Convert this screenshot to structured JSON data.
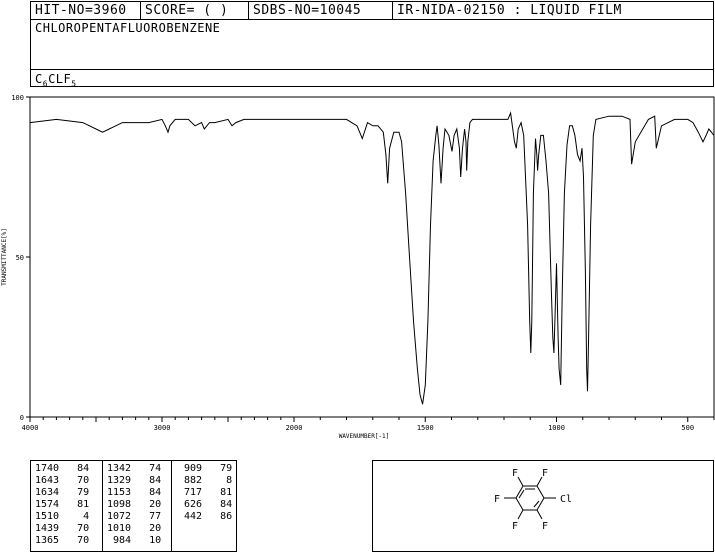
{
  "header": {
    "hit_no": "HIT-NO=3960",
    "score": "SCORE=  (   )",
    "sdbs_no": "SDBS-NO=10045",
    "ir": "IR-NIDA-02150 : LIQUID FILM"
  },
  "compound": {
    "name": "CHLOROPENTAFLUOROBENZENE",
    "formula_c": "C",
    "formula_c_sub": "6",
    "formula_mid": "CLF",
    "formula_f_sub": "5"
  },
  "chart_data": {
    "type": "line",
    "title": "",
    "xlabel": "WAVENUMBER[-1]",
    "ylabel": "TRANSMITTANCE[%]",
    "xlim": [
      4000,
      400
    ],
    "ylim": [
      0,
      100
    ],
    "x_ticks": [
      4000,
      3000,
      2000,
      1500,
      1000,
      500
    ],
    "y_ticks": [
      0,
      50,
      100
    ],
    "series": [
      {
        "name": "",
        "x": [
          4000,
          3800,
          3600,
          3500,
          3450,
          3400,
          3300,
          3100,
          3000,
          2975,
          2955,
          2940,
          2900,
          2800,
          2750,
          2700,
          2680,
          2640,
          2600,
          2500,
          2470,
          2440,
          2380,
          2300,
          2200,
          2100,
          2000,
          1900,
          1800,
          1760,
          1740,
          1720,
          1700,
          1680,
          1660,
          1650,
          1643,
          1636,
          1620,
          1600,
          1590,
          1575,
          1560,
          1545,
          1530,
          1520,
          1510,
          1500,
          1490,
          1480,
          1470,
          1460,
          1455,
          1448,
          1440,
          1432,
          1425,
          1410,
          1398,
          1390,
          1380,
          1370,
          1365,
          1358,
          1350,
          1345,
          1342,
          1338,
          1330,
          1320,
          1300,
          1250,
          1200,
          1185,
          1175,
          1160,
          1153,
          1146,
          1135,
          1125,
          1110,
          1102,
          1098,
          1094,
          1088,
          1080,
          1075,
          1072,
          1068,
          1060,
          1050,
          1040,
          1030,
          1020,
          1014,
          1010,
          1006,
          1000,
          994,
          990,
          984,
          978,
          970,
          960,
          950,
          940,
          930,
          920,
          910,
          903,
          897,
          890,
          885,
          882,
          879,
          870,
          860,
          850,
          800,
          750,
          720,
          717,
          714,
          700,
          650,
          626,
          620,
          600,
          550,
          500,
          480,
          460,
          442,
          430,
          420,
          410,
          400
        ],
        "y": [
          92,
          93,
          92,
          90,
          89,
          90,
          92,
          92,
          93,
          91,
          89,
          91,
          93,
          93,
          91,
          92,
          90,
          92,
          92,
          93,
          91,
          92,
          93,
          93,
          93,
          93,
          93,
          93,
          93,
          91,
          87,
          92,
          91,
          91,
          89,
          82,
          73,
          84,
          89,
          89,
          86,
          70,
          50,
          30,
          15,
          7,
          4,
          10,
          30,
          60,
          80,
          88,
          91,
          85,
          73,
          84,
          90,
          88,
          83,
          88,
          90,
          84,
          75,
          84,
          90,
          86,
          77,
          86,
          92,
          93,
          93,
          93,
          93,
          93,
          95,
          86,
          84,
          90,
          92,
          88,
          60,
          30,
          20,
          30,
          70,
          87,
          82,
          77,
          82,
          88,
          88,
          80,
          70,
          40,
          25,
          20,
          30,
          48,
          25,
          15,
          10,
          40,
          70,
          85,
          91,
          91,
          88,
          82,
          80,
          84,
          75,
          45,
          15,
          8,
          20,
          60,
          88,
          93,
          94,
          94,
          93,
          86,
          79,
          86,
          93,
          94,
          84,
          91,
          93,
          93,
          92,
          89,
          86,
          88,
          90,
          89,
          88
        ]
      }
    ]
  },
  "peaks": [
    [
      [
        "1740",
        "84"
      ],
      [
        "1643",
        "70"
      ],
      [
        "1634",
        "79"
      ],
      [
        "1574",
        "81"
      ],
      [
        "1510",
        "4"
      ],
      [
        "1439",
        "70"
      ],
      [
        "1365",
        "70"
      ]
    ],
    [
      [
        "1342",
        "74"
      ],
      [
        "1329",
        "84"
      ],
      [
        "1153",
        "84"
      ],
      [
        "1098",
        "20"
      ],
      [
        "1072",
        "77"
      ],
      [
        "1010",
        "20"
      ],
      [
        "984",
        "10"
      ]
    ],
    [
      [
        "909",
        "79"
      ],
      [
        "882",
        "8"
      ],
      [
        "717",
        "81"
      ],
      [
        "626",
        "84"
      ],
      [
        "442",
        "86"
      ]
    ]
  ],
  "structure": {
    "atoms": [
      "F",
      "F",
      "F",
      "Cl",
      "F",
      "F"
    ]
  }
}
